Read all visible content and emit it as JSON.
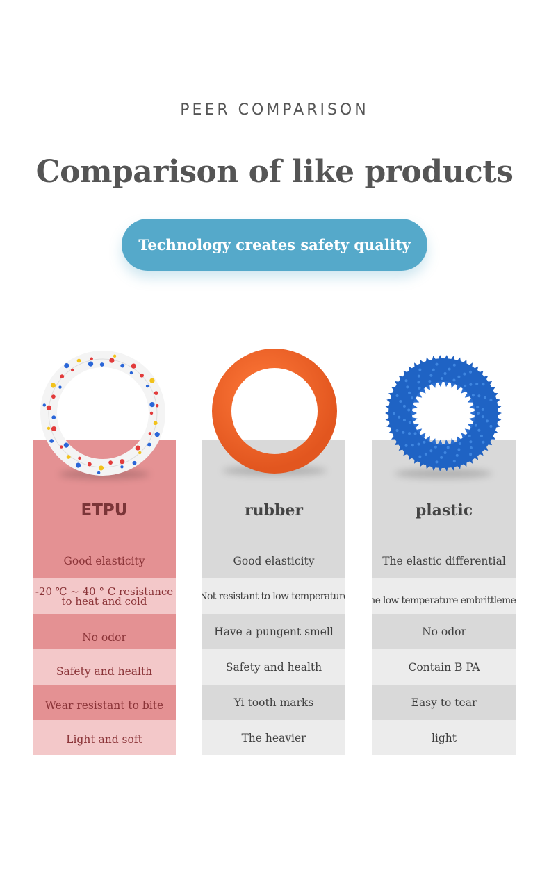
{
  "header": {
    "eyebrow": "PEER COMPARISON",
    "title": "Comparison of like products",
    "pill": "Technology creates safety quality"
  },
  "colors": {
    "accent": "#55a9ca",
    "etpu_dark": "#e49193",
    "etpu_light": "#f3c8c9",
    "gray_dark": "#d9d9d9",
    "gray_light": "#ececec"
  },
  "columns": [
    {
      "name": "ETPU",
      "image": "white-speckled-ring-toy",
      "rows": [
        "Good elasticity",
        "-20 ℃ ~ 40 ° C resistance to heat and cold",
        "No odor",
        "Safety and health",
        "Wear resistant to bite",
        "Light and soft"
      ]
    },
    {
      "name": "rubber",
      "image": "orange-rubber-ring-toy",
      "rows": [
        "Good elasticity",
        "Not resistant to low temperature",
        "Have a pungent smell",
        "Safety and health",
        "Yi tooth marks",
        "The heavier"
      ]
    },
    {
      "name": "plastic",
      "image": "blue-spiky-plastic-ring-toy",
      "rows": [
        "The elastic differential",
        "The low temperature embrittlement",
        "No odor",
        "Contain B PA",
        "Easy to tear",
        "light"
      ]
    }
  ]
}
